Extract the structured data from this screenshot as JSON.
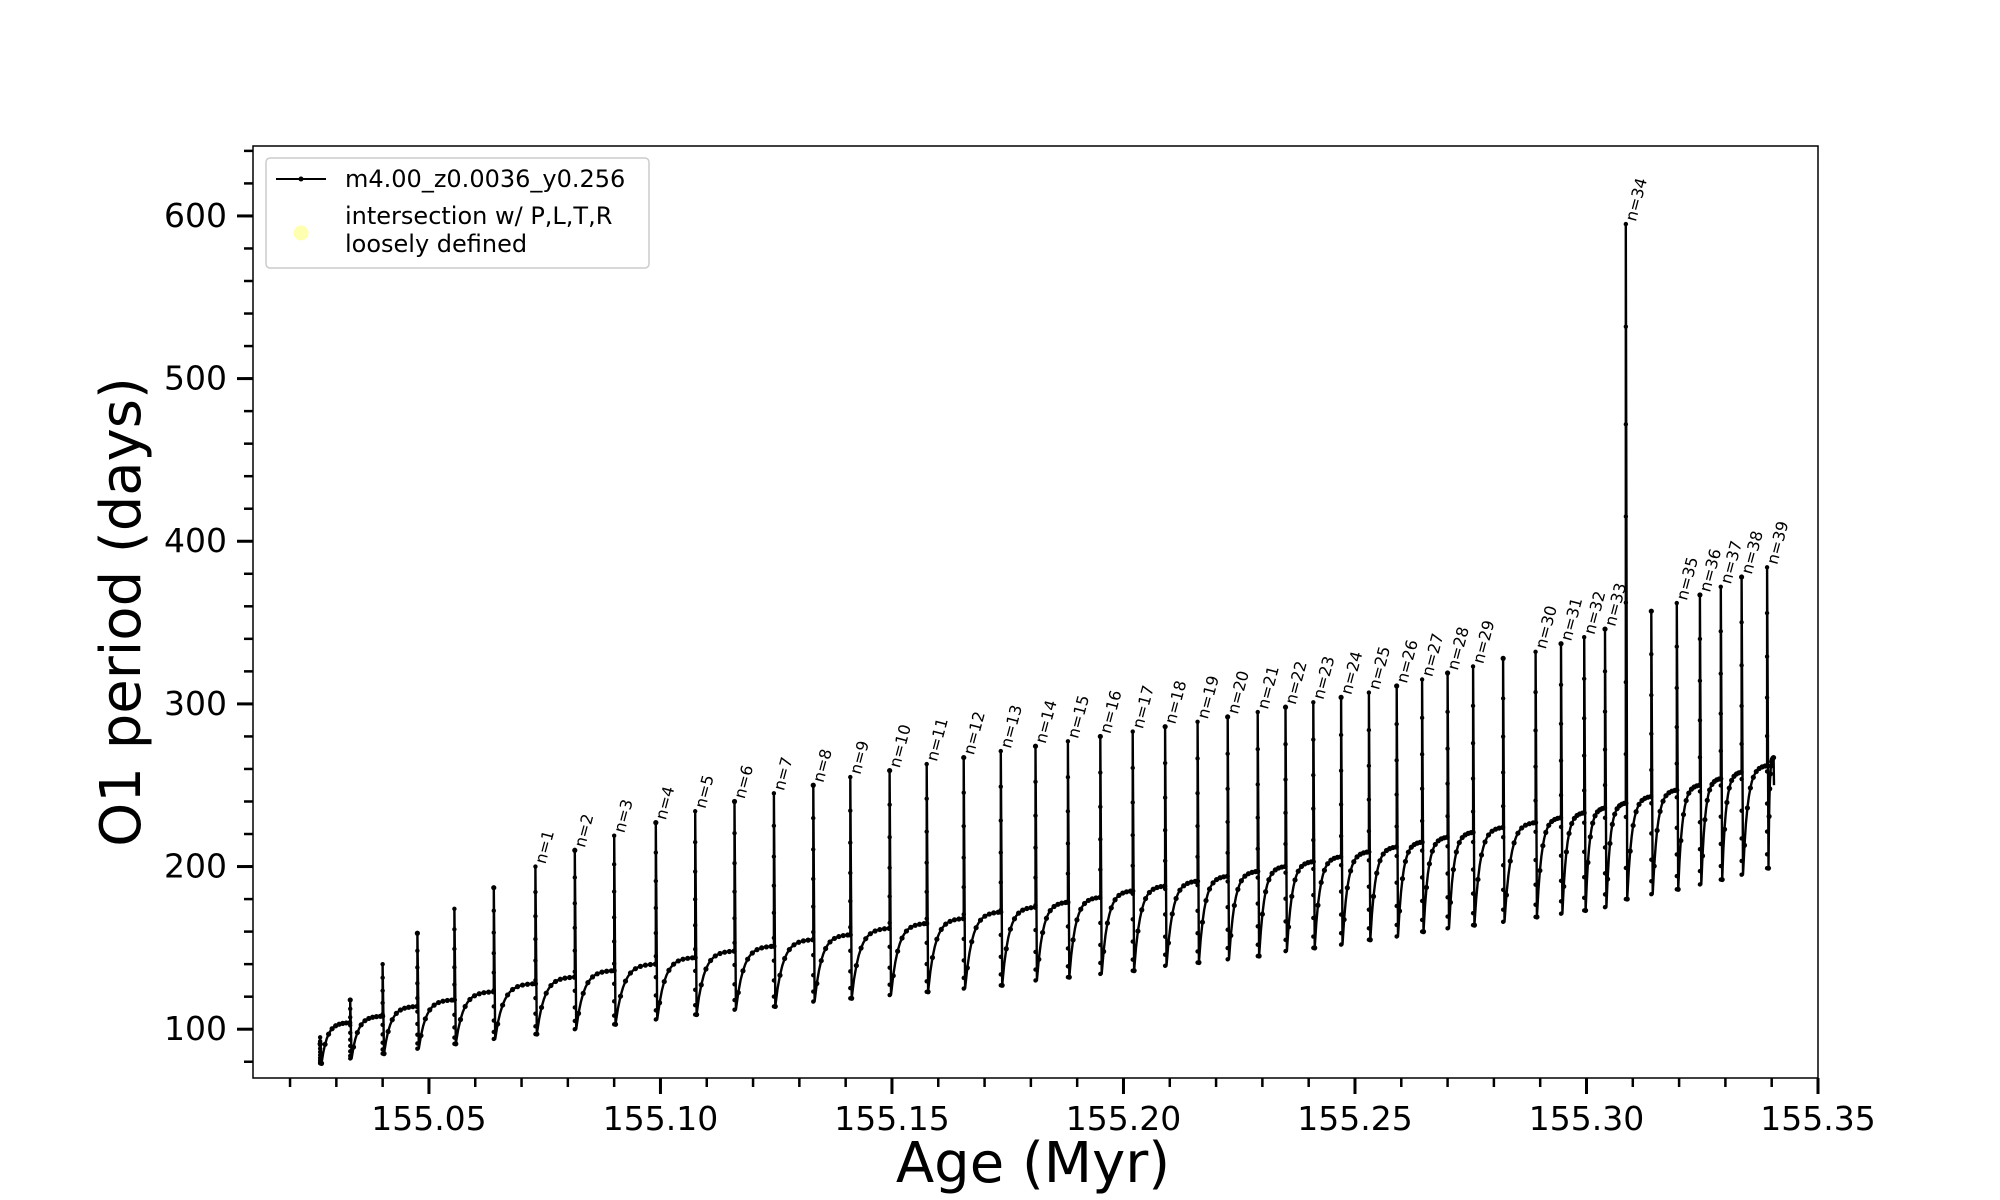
{
  "chart_data": {
    "type": "line",
    "title": "",
    "xlabel": "Age (Myr)",
    "ylabel": "O1 period (days)",
    "xlim": [
      155.012,
      155.35
    ],
    "ylim": [
      70,
      643
    ],
    "x_ticks": [
      155.05,
      155.1,
      155.15,
      155.2,
      155.25,
      155.3,
      155.35
    ],
    "x_tick_labels": [
      "155.05",
      "155.10",
      "155.15",
      "155.20",
      "155.25",
      "155.30",
      "155.35"
    ],
    "y_ticks": [
      100,
      200,
      300,
      400,
      500,
      600
    ],
    "y_tick_labels": [
      "100",
      "200",
      "300",
      "400",
      "500",
      "600"
    ],
    "grid": false,
    "legend": {
      "placement": "upper-left",
      "entries": [
        {
          "label": "m4.00_z0.0036_y0.256",
          "marker": "line-dot",
          "color": "#000000"
        },
        {
          "label_lines": [
            "intersection w/ P,L,T,R",
            "loosely defined"
          ],
          "marker": "circle",
          "color": "#ffffb0"
        }
      ]
    },
    "series": [
      {
        "name": "m4.00_z0.0036_y0.256",
        "color": "#000000",
        "pulse_points": [
          {
            "age": 155.0265,
            "peak": 95,
            "trough": 79,
            "baseline": 104
          },
          {
            "age": 155.033,
            "peak": 118,
            "trough": 82,
            "baseline": 108
          },
          {
            "age": 155.04,
            "peak": 140,
            "trough": 85,
            "baseline": 114
          },
          {
            "age": 155.0475,
            "peak": 159,
            "trough": 88,
            "baseline": 118
          },
          {
            "age": 155.0555,
            "peak": 174,
            "trough": 91,
            "baseline": 123
          },
          {
            "age": 155.064,
            "peak": 187,
            "trough": 94,
            "baseline": 128
          },
          {
            "age": 155.073,
            "peak": 200,
            "trough": 97,
            "baseline": 132,
            "label": "n=1"
          },
          {
            "age": 155.0815,
            "peak": 210,
            "trough": 100,
            "baseline": 136,
            "label": "n=2"
          },
          {
            "age": 155.09,
            "peak": 219,
            "trough": 103,
            "baseline": 140,
            "label": "n=3"
          },
          {
            "age": 155.099,
            "peak": 227,
            "trough": 106,
            "baseline": 144,
            "label": "n=4"
          },
          {
            "age": 155.1075,
            "peak": 234,
            "trough": 109,
            "baseline": 148,
            "label": "n=5"
          },
          {
            "age": 155.116,
            "peak": 240,
            "trough": 112,
            "baseline": 151,
            "label": "n=6"
          },
          {
            "age": 155.1245,
            "peak": 245,
            "trough": 114,
            "baseline": 155,
            "label": "n=7"
          },
          {
            "age": 155.133,
            "peak": 250,
            "trough": 117,
            "baseline": 158,
            "label": "n=8"
          },
          {
            "age": 155.141,
            "peak": 255,
            "trough": 119,
            "baseline": 162,
            "label": "n=9"
          },
          {
            "age": 155.1495,
            "peak": 259,
            "trough": 121,
            "baseline": 165,
            "label": "n=10"
          },
          {
            "age": 155.1575,
            "peak": 263,
            "trough": 123,
            "baseline": 168,
            "label": "n=11"
          },
          {
            "age": 155.1655,
            "peak": 267,
            "trough": 125,
            "baseline": 172,
            "label": "n=12"
          },
          {
            "age": 155.1735,
            "peak": 271,
            "trough": 127,
            "baseline": 175,
            "label": "n=13"
          },
          {
            "age": 155.181,
            "peak": 274,
            "trough": 130,
            "baseline": 178,
            "label": "n=14"
          },
          {
            "age": 155.188,
            "peak": 277,
            "trough": 132,
            "baseline": 181,
            "label": "n=15"
          },
          {
            "age": 155.195,
            "peak": 280,
            "trough": 134,
            "baseline": 185,
            "label": "n=16"
          },
          {
            "age": 155.202,
            "peak": 283,
            "trough": 136,
            "baseline": 188,
            "label": "n=17"
          },
          {
            "age": 155.209,
            "peak": 286,
            "trough": 139,
            "baseline": 191,
            "label": "n=18"
          },
          {
            "age": 155.216,
            "peak": 289,
            "trough": 141,
            "baseline": 194,
            "label": "n=19"
          },
          {
            "age": 155.2225,
            "peak": 292,
            "trough": 143,
            "baseline": 197,
            "label": "n=20"
          },
          {
            "age": 155.229,
            "peak": 295,
            "trough": 145,
            "baseline": 200,
            "label": "n=21"
          },
          {
            "age": 155.235,
            "peak": 298,
            "trough": 148,
            "baseline": 203,
            "label": "n=22"
          },
          {
            "age": 155.241,
            "peak": 301,
            "trough": 150,
            "baseline": 206,
            "label": "n=23"
          },
          {
            "age": 155.247,
            "peak": 304,
            "trough": 152,
            "baseline": 209,
            "label": "n=24"
          },
          {
            "age": 155.253,
            "peak": 307,
            "trough": 155,
            "baseline": 212,
            "label": "n=25"
          },
          {
            "age": 155.259,
            "peak": 311,
            "trough": 157,
            "baseline": 215,
            "label": "n=26"
          },
          {
            "age": 155.2645,
            "peak": 315,
            "trough": 160,
            "baseline": 218,
            "label": "n=27"
          },
          {
            "age": 155.27,
            "peak": 319,
            "trough": 162,
            "baseline": 221,
            "label": "n=28"
          },
          {
            "age": 155.2755,
            "peak": 323,
            "trough": 164,
            "baseline": 224,
            "label": "n=29"
          },
          {
            "age": 155.282,
            "peak": 328,
            "trough": 166,
            "baseline": 227
          },
          {
            "age": 155.289,
            "peak": 332,
            "trough": 169,
            "baseline": 230,
            "label": "n=30"
          },
          {
            "age": 155.2945,
            "peak": 337,
            "trough": 171,
            "baseline": 233,
            "label": "n=31"
          },
          {
            "age": 155.2995,
            "peak": 341,
            "trough": 173,
            "baseline": 236,
            "label": "n=32"
          },
          {
            "age": 155.304,
            "peak": 346,
            "trough": 175,
            "baseline": 239,
            "label": "n=33"
          },
          {
            "age": 155.3085,
            "peak": 595,
            "trough": 180,
            "baseline": 243,
            "label": "n=34"
          },
          {
            "age": 155.314,
            "peak": 357,
            "trough": 183,
            "baseline": 247
          },
          {
            "age": 155.3195,
            "peak": 362,
            "trough": 186,
            "baseline": 250,
            "label": "n=35"
          },
          {
            "age": 155.3245,
            "peak": 367,
            "trough": 189,
            "baseline": 254,
            "label": "n=36"
          },
          {
            "age": 155.329,
            "peak": 372,
            "trough": 192,
            "baseline": 258,
            "label": "n=37"
          },
          {
            "age": 155.3335,
            "peak": 378,
            "trough": 195,
            "baseline": 262,
            "label": "n=38"
          },
          {
            "age": 155.339,
            "peak": 384,
            "trough": 199,
            "baseline": 267,
            "label": "n=39"
          }
        ],
        "end": {
          "age": 155.3405,
          "value": 250
        }
      }
    ]
  }
}
